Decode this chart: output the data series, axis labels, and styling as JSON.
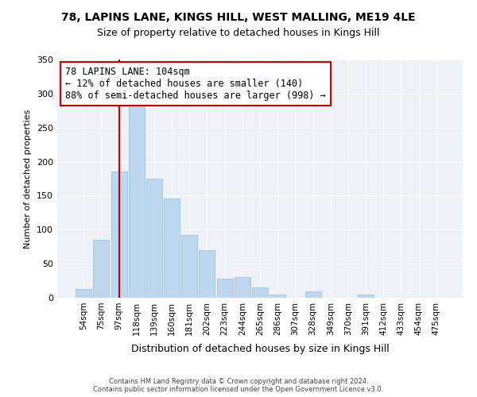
{
  "title1": "78, LAPINS LANE, KINGS HILL, WEST MALLING, ME19 4LE",
  "title2": "Size of property relative to detached houses in Kings Hill",
  "xlabel": "Distribution of detached houses by size in Kings Hill",
  "ylabel": "Number of detached properties",
  "bar_labels": [
    "54sqm",
    "75sqm",
    "97sqm",
    "118sqm",
    "139sqm",
    "160sqm",
    "181sqm",
    "202sqm",
    "223sqm",
    "244sqm",
    "265sqm",
    "286sqm",
    "307sqm",
    "328sqm",
    "349sqm",
    "370sqm",
    "391sqm",
    "412sqm",
    "433sqm",
    "454sqm",
    "475sqm"
  ],
  "bar_values": [
    13,
    85,
    185,
    290,
    175,
    146,
    92,
    70,
    28,
    30,
    15,
    5,
    0,
    9,
    0,
    0,
    5,
    0,
    0,
    0,
    0
  ],
  "bar_color": "#bdd7ee",
  "bar_edge_color": "#9dc3e0",
  "vline_color": "#cc0000",
  "annotation_text": "78 LAPINS LANE: 104sqm\n← 12% of detached houses are smaller (140)\n88% of semi-detached houses are larger (998) →",
  "annotation_box_color": "white",
  "annotation_box_edge": "#cc0000",
  "ylim": [
    0,
    350
  ],
  "yticks": [
    0,
    50,
    100,
    150,
    200,
    250,
    300,
    350
  ],
  "footer1": "Contains HM Land Registry data © Crown copyright and database right 2024.",
  "footer2": "Contains public sector information licensed under the Open Government Licence v3.0.",
  "bg_color": "#ffffff",
  "plot_bg_color": "#eef2f7",
  "grid_color": "#ffffff",
  "title1_fontsize": 10,
  "title2_fontsize": 9
}
